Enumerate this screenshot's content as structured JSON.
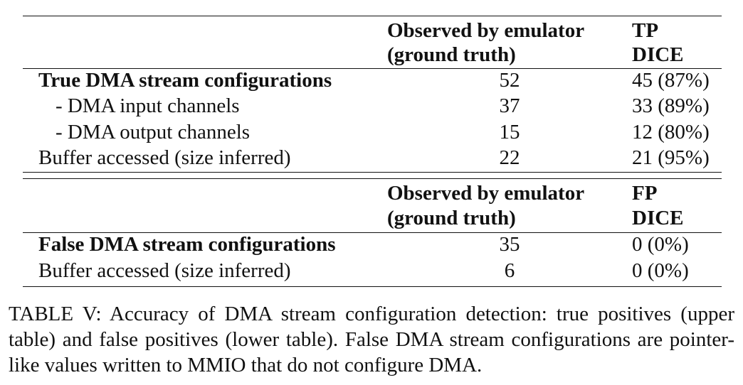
{
  "upper": {
    "header": {
      "col2_line1": "Observed by emulator",
      "col2_line2": "(ground truth)",
      "col3_line1": "TP",
      "col3_line2": "DICE"
    },
    "rows": [
      {
        "label": "True DMA stream configurations",
        "observed": "52",
        "dice": "45 (87%)"
      },
      {
        "label": "- DMA input channels",
        "observed": "37",
        "dice": "33 (89%)"
      },
      {
        "label": "- DMA output channels",
        "observed": "15",
        "dice": "12 (80%)"
      },
      {
        "label": "Buffer accessed (size inferred)",
        "observed": "22",
        "dice": "21 (95%)"
      }
    ]
  },
  "lower": {
    "header": {
      "col2_line1": "Observed by emulator",
      "col2_line2": "(ground truth)",
      "col3_line1": "FP",
      "col3_line2": "DICE"
    },
    "rows": [
      {
        "label": "False DMA stream configurations",
        "observed": "35",
        "dice": "0 (0%)"
      },
      {
        "label": "Buffer accessed (size inferred)",
        "observed": "6",
        "dice": "0 (0%)"
      }
    ]
  },
  "caption": "TABLE V: Accuracy of DMA stream configuration detection: true positives (upper table) and false positives (lower table). False DMA stream configurations are pointer-like values written to MMIO that do not configure DMA."
}
